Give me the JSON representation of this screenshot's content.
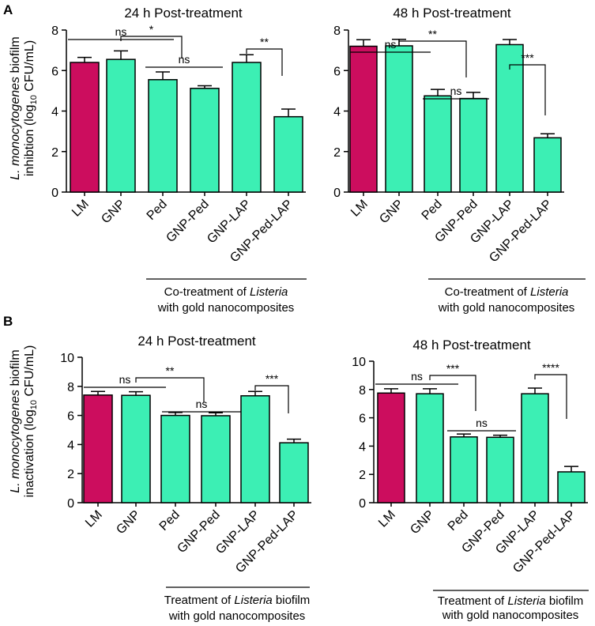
{
  "panel_labels": [
    "A",
    "B"
  ],
  "colors": {
    "control": "#cc0d5e",
    "treatment": "#3cefb4",
    "stroke": "#000000"
  },
  "y_labels": {
    "A": {
      "species": "L. monocytogenes",
      "line1_rest": " biofilm",
      "line2_pre": "inhibtion (log",
      "sub": "10",
      "line2_post": " CFU/mL)"
    },
    "B": {
      "species": "L. monocytogenes",
      "line1_rest": " biofilm",
      "line2_pre": "inactivation (log",
      "sub": "10",
      "line2_post": " CFU/mL)"
    }
  },
  "notes": {
    "A": {
      "line1_pre": "Co-treatment of ",
      "line1_italic": "Listeria",
      "line2": "with gold nanocomposites"
    },
    "B": {
      "line1_pre": "Treatment of ",
      "line1_italic": "Listeria",
      "line1_post": " biofilm",
      "line2": "with gold nanocomposites"
    }
  },
  "chart_data": [
    {
      "id": "A-24h",
      "type": "bar",
      "title": "24 h Post-treatment",
      "categories": [
        "LM",
        "GNP",
        "Ped",
        "GNP-Ped",
        "GNP-LAP",
        "GNP-Ped-LAP"
      ],
      "values": [
        6.4,
        6.55,
        5.55,
        5.12,
        6.4,
        3.72
      ],
      "errors": [
        0.25,
        0.42,
        0.38,
        0.13,
        0.38,
        0.38
      ],
      "ylim": [
        0,
        8
      ],
      "yticks": [
        0,
        2,
        4,
        6,
        8
      ],
      "significance": [
        "ns",
        "*",
        "ns",
        "**"
      ]
    },
    {
      "id": "A-48h",
      "type": "bar",
      "title": "48 h Post-treatment",
      "categories": [
        "LM",
        "GNP",
        "Ped",
        "GNP-Ped",
        "GNP-LAP",
        "GNP-Ped-LAP"
      ],
      "values": [
        7.2,
        7.22,
        4.75,
        4.62,
        7.28,
        2.68
      ],
      "errors": [
        0.32,
        0.32,
        0.32,
        0.3,
        0.25,
        0.2
      ],
      "ylim": [
        0,
        8
      ],
      "yticks": [
        0,
        2,
        4,
        6,
        8
      ],
      "significance": [
        "ns",
        "**",
        "ns",
        "***"
      ]
    },
    {
      "id": "B-24h",
      "type": "bar",
      "title": "24 h Post-treatment",
      "categories": [
        "LM",
        "GNP",
        "Ped",
        "GNP-Ped",
        "GNP-LAP",
        "GNP-Ped-LAP"
      ],
      "values": [
        7.4,
        7.38,
        6.0,
        5.98,
        7.35,
        4.12
      ],
      "errors": [
        0.25,
        0.25,
        0.2,
        0.2,
        0.3,
        0.25
      ],
      "ylim": [
        0,
        10
      ],
      "yticks": [
        0,
        2,
        4,
        6,
        8,
        10
      ],
      "significance": [
        "ns",
        "**",
        "ns",
        "***"
      ]
    },
    {
      "id": "B-48h",
      "type": "bar",
      "title": "48 h Post-treatment",
      "categories": [
        "LM",
        "GNP",
        "Ped",
        "GNP-Ped",
        "GNP-LAP",
        "GNP-Ped-LAP"
      ],
      "values": [
        7.75,
        7.7,
        4.65,
        4.62,
        7.7,
        2.18
      ],
      "errors": [
        0.3,
        0.35,
        0.2,
        0.15,
        0.4,
        0.38
      ],
      "ylim": [
        0,
        10
      ],
      "yticks": [
        0,
        2,
        4,
        6,
        8,
        10
      ],
      "significance": [
        "ns",
        "***",
        "ns",
        "****"
      ]
    }
  ]
}
